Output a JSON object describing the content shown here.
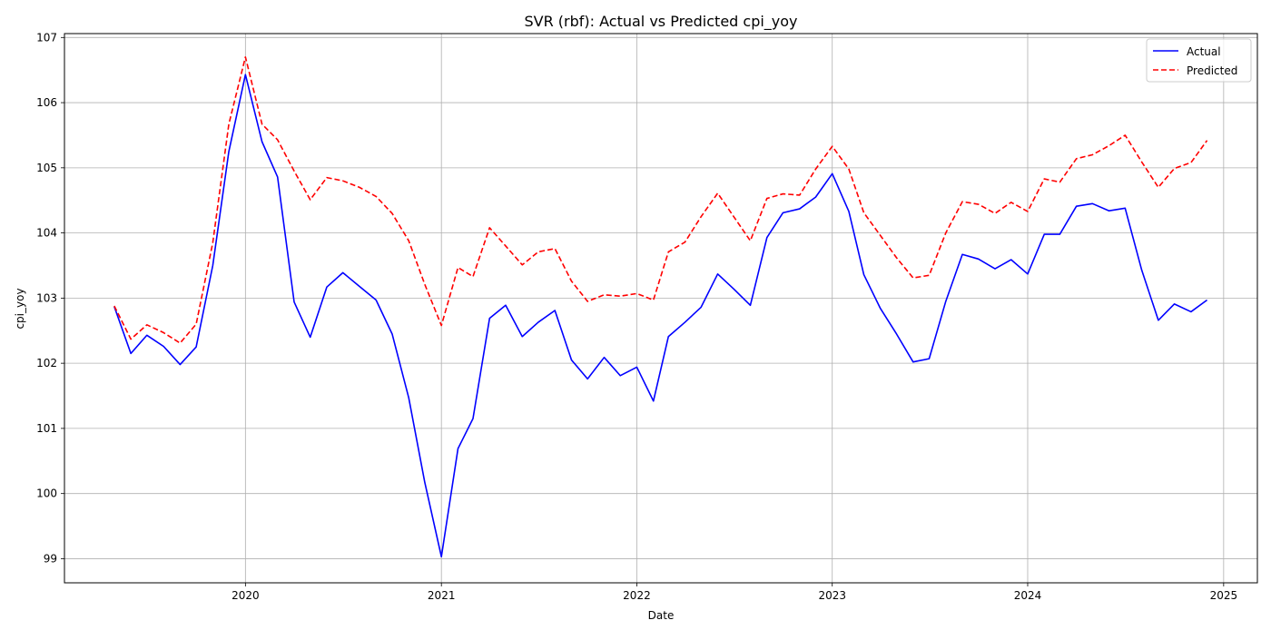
{
  "chart_data": {
    "type": "line",
    "title": "SVR (rbf): Actual vs Predicted cpi_yoy",
    "xlabel": "Date",
    "ylabel": "cpi_yoy",
    "x_ticks": [
      "2020",
      "2021",
      "2022",
      "2023",
      "2024",
      "2025"
    ],
    "y_ticks": [
      "99",
      "100",
      "101",
      "102",
      "103",
      "104",
      "105",
      "106",
      "107"
    ],
    "xlim": [
      "2019-01-28",
      "2025-03-05"
    ],
    "ylim": [
      98.63,
      107.06
    ],
    "grid": true,
    "legend_position": "top-right",
    "x": [
      "2019-05-01",
      "2019-06-01",
      "2019-07-01",
      "2019-08-01",
      "2019-09-01",
      "2019-10-01",
      "2019-11-01",
      "2019-12-01",
      "2020-01-01",
      "2020-02-01",
      "2020-03-01",
      "2020-04-01",
      "2020-05-01",
      "2020-06-01",
      "2020-07-01",
      "2020-08-01",
      "2020-09-01",
      "2020-10-01",
      "2020-11-01",
      "2020-12-01",
      "2021-01-01",
      "2021-02-01",
      "2021-03-01",
      "2021-04-01",
      "2021-05-01",
      "2021-06-01",
      "2021-07-01",
      "2021-08-01",
      "2021-09-01",
      "2021-10-01",
      "2021-11-01",
      "2021-12-01",
      "2022-01-01",
      "2022-02-01",
      "2022-03-01",
      "2022-04-01",
      "2022-05-01",
      "2022-06-01",
      "2022-07-01",
      "2022-08-01",
      "2022-09-01",
      "2022-10-01",
      "2022-11-01",
      "2022-12-01",
      "2023-01-01",
      "2023-02-01",
      "2023-03-01",
      "2023-04-01",
      "2023-05-01",
      "2023-06-01",
      "2023-07-01",
      "2023-08-01",
      "2023-09-01",
      "2023-10-01",
      "2023-11-01",
      "2023-12-01",
      "2024-01-01",
      "2024-02-01",
      "2024-03-01",
      "2024-04-01",
      "2024-05-01",
      "2024-06-01",
      "2024-07-01",
      "2024-08-01",
      "2024-09-01",
      "2024-10-01",
      "2024-11-01",
      "2024-12-01"
    ],
    "series": [
      {
        "name": "Actual",
        "color": "#0000ff",
        "dash": "solid",
        "values": [
          102.87,
          102.15,
          102.43,
          102.26,
          101.98,
          102.25,
          103.5,
          105.25,
          106.43,
          105.4,
          104.86,
          102.94,
          102.4,
          103.17,
          103.39,
          103.18,
          102.97,
          102.45,
          101.47,
          100.17,
          99.03,
          100.69,
          101.15,
          102.69,
          102.89,
          102.41,
          102.63,
          102.81,
          102.05,
          101.76,
          102.09,
          101.81,
          101.94,
          101.42,
          102.41,
          102.63,
          102.86,
          103.37,
          103.14,
          102.89,
          103.93,
          104.31,
          104.37,
          104.55,
          104.91,
          104.33,
          103.36,
          102.84,
          102.45,
          102.02,
          102.07,
          102.95,
          103.67,
          103.6,
          103.45,
          103.59,
          103.37,
          103.98,
          103.98,
          104.41,
          104.45,
          104.34,
          104.38,
          103.43,
          102.66,
          102.91,
          102.79,
          102.97
        ]
      },
      {
        "name": "Predicted",
        "color": "#ff0000",
        "dash": "dashed",
        "values": [
          102.88,
          102.37,
          102.59,
          102.47,
          102.31,
          102.6,
          103.85,
          105.67,
          106.7,
          105.67,
          105.43,
          104.95,
          104.51,
          104.85,
          104.8,
          104.7,
          104.56,
          104.3,
          103.88,
          103.21,
          102.58,
          103.47,
          103.33,
          104.08,
          103.8,
          103.51,
          103.71,
          103.76,
          103.26,
          102.95,
          103.05,
          103.03,
          103.07,
          102.97,
          103.71,
          103.86,
          104.25,
          104.61,
          104.25,
          103.88,
          104.53,
          104.6,
          104.58,
          104.98,
          105.33,
          104.98,
          104.31,
          103.96,
          103.62,
          103.31,
          103.35,
          104.0,
          104.48,
          104.44,
          104.3,
          104.47,
          104.33,
          104.83,
          104.78,
          105.14,
          105.2,
          105.34,
          105.5,
          105.09,
          104.7,
          104.99,
          105.08,
          105.42
        ]
      }
    ]
  }
}
